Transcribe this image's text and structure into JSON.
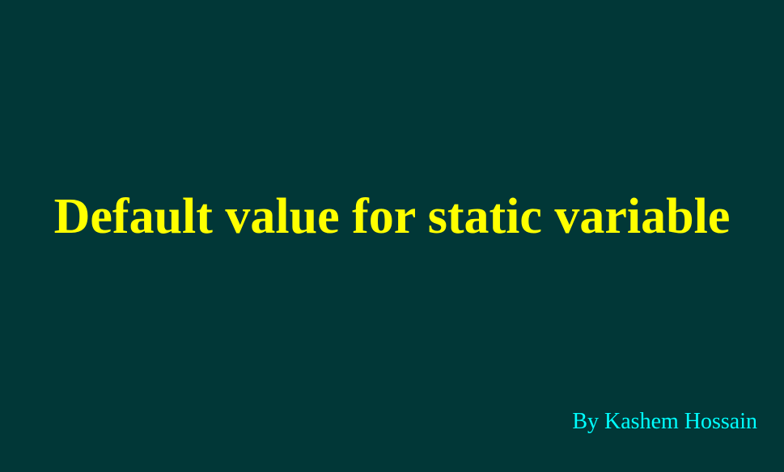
{
  "slide": {
    "title": "Default value for static variable",
    "byline": "By Kashem Hossain"
  },
  "colors": {
    "background": "#013737",
    "title": "#ffff00",
    "byline": "#00ffff"
  }
}
